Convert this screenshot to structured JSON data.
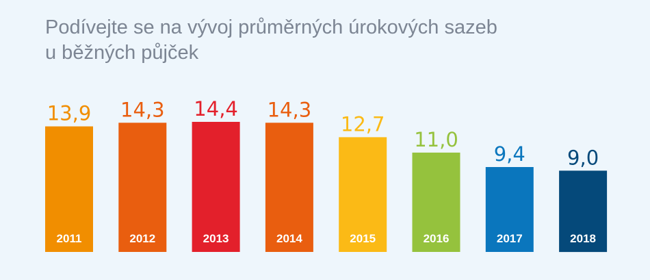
{
  "title_lines": [
    "Podívejte se na vývoj průměrných úrokových sazeb",
    "u běžných půjček"
  ],
  "chart_data": {
    "type": "bar",
    "title": "Podívejte se na vývoj průměrných úrokových sazeb u běžných půjček",
    "categories": [
      "2011",
      "2012",
      "2013",
      "2014",
      "2015",
      "2016",
      "2017",
      "2018"
    ],
    "values": [
      13.9,
      14.3,
      14.4,
      14.3,
      12.7,
      11.0,
      9.4,
      9.0
    ],
    "value_labels": [
      "13,9",
      "14,3",
      "14,4",
      "14,3",
      "12,7",
      "11,0",
      "9,4",
      "9,0"
    ],
    "colors": [
      "#f18e00",
      "#e95e0f",
      "#e3202b",
      "#e95e0f",
      "#fbba16",
      "#95c23d",
      "#0a76bd",
      "#05497a"
    ],
    "grid": false,
    "legend": "none"
  }
}
